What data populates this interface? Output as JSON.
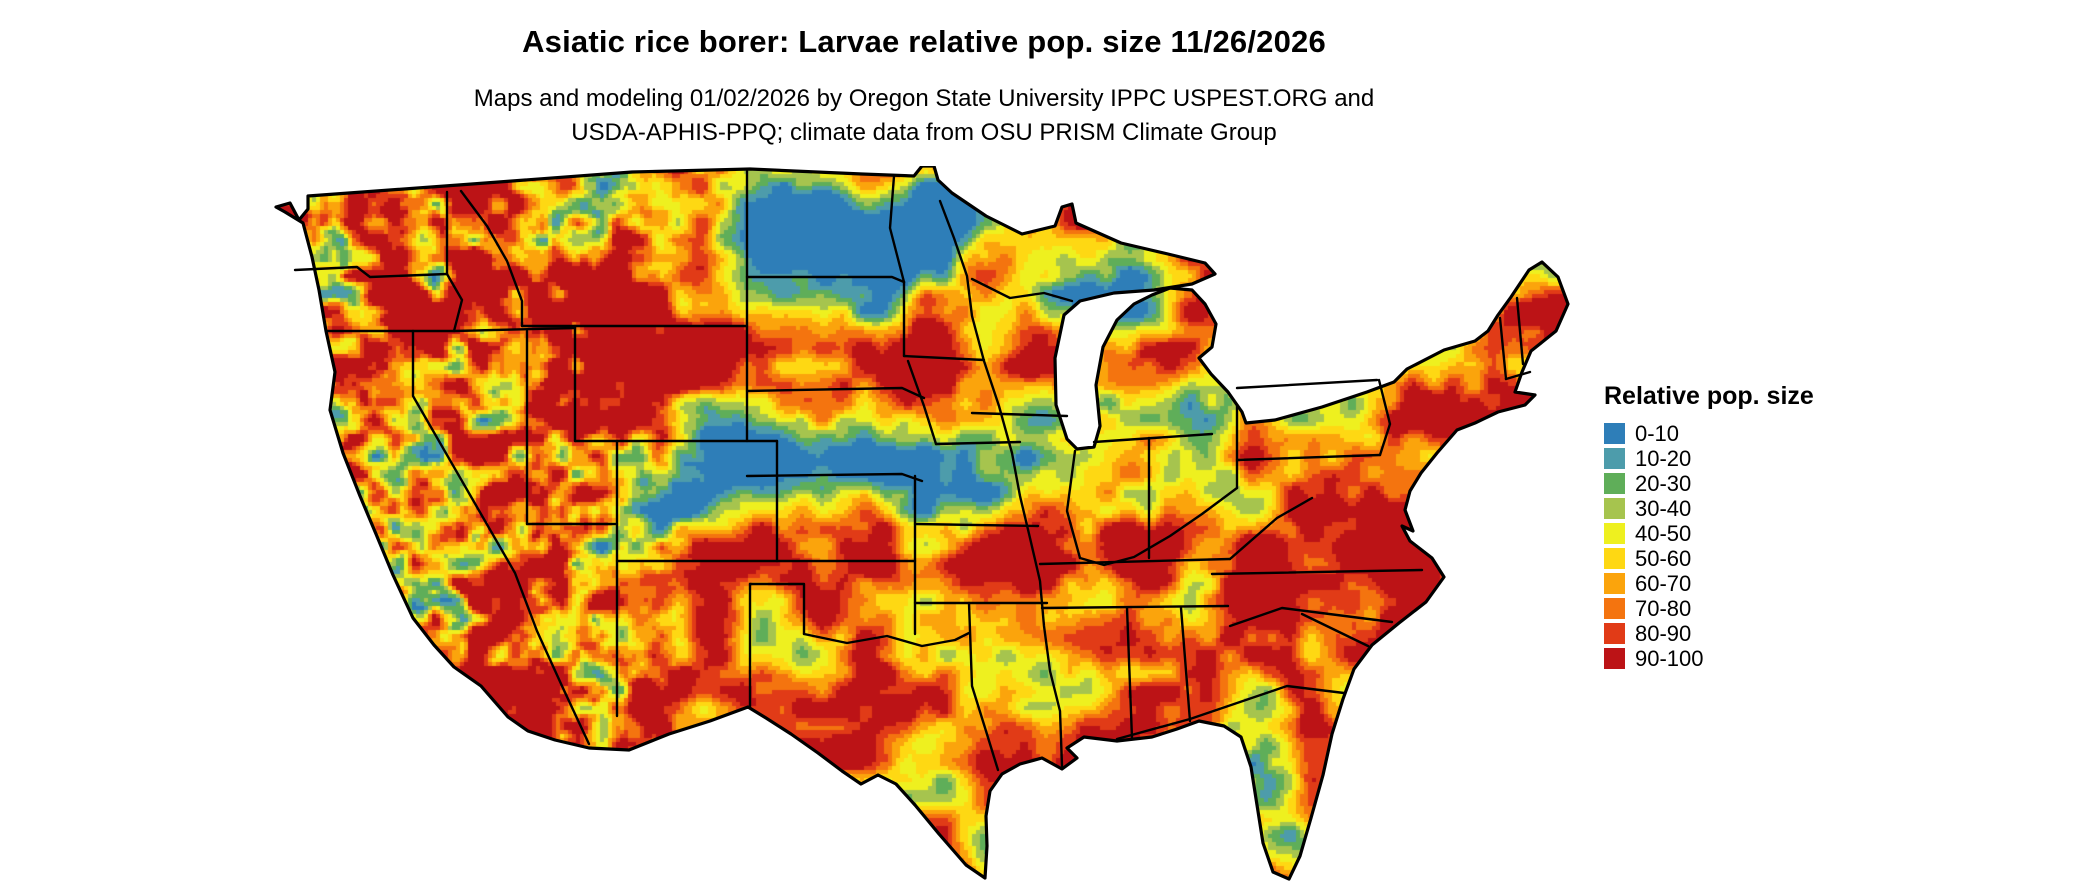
{
  "header": {
    "title": "Asiatic rice borer: Larvae relative pop. size 11/26/2026",
    "subtitle_line1": "Maps and modeling 01/02/2026 by Oregon State University IPPC USPEST.ORG and",
    "subtitle_line2": "USDA-APHIS-PPQ; climate data from OSU PRISM Climate Group"
  },
  "legend": {
    "title": "Relative pop. size",
    "items": [
      {
        "label": "0-10",
        "color": "#2e7eb8"
      },
      {
        "label": "10-20",
        "color": "#4d9cab"
      },
      {
        "label": "20-30",
        "color": "#5fae59"
      },
      {
        "label": "30-40",
        "color": "#a6c44e"
      },
      {
        "label": "40-50",
        "color": "#eef01f"
      },
      {
        "label": "50-60",
        "color": "#fed813"
      },
      {
        "label": "60-70",
        "color": "#fba40c"
      },
      {
        "label": "70-80",
        "color": "#f4740f"
      },
      {
        "label": "80-90",
        "color": "#e13b17"
      },
      {
        "label": "90-100",
        "color": "#bc1316"
      }
    ]
  }
}
